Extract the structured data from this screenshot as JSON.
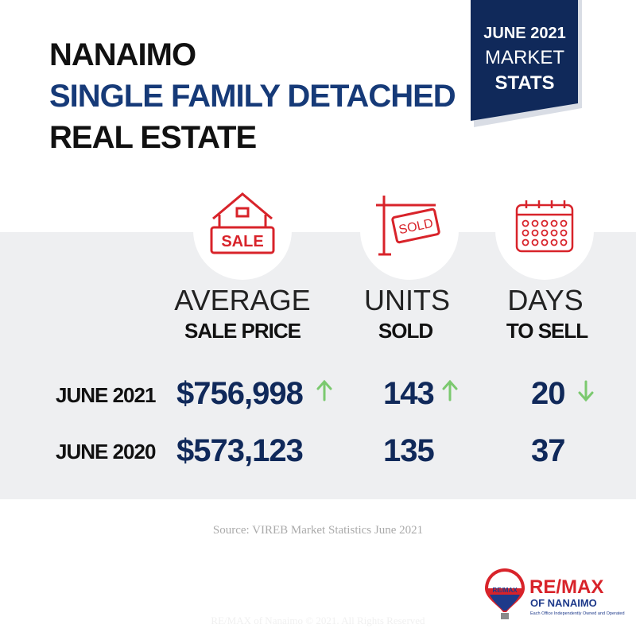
{
  "header": {
    "title_lines": [
      "NANAIMO",
      "SINGLE FAMILY DETACHED",
      "REAL ESTATE"
    ],
    "badge": [
      "JUNE 2021",
      "MARKET",
      "STATS"
    ]
  },
  "icons": {
    "sale_sign": "SALE",
    "sold_sign": "SOLD"
  },
  "table": {
    "columns": [
      [
        "AVERAGE",
        "SALE PRICE"
      ],
      [
        "UNITS",
        "SOLD"
      ],
      [
        "DAYS",
        "TO SELL"
      ]
    ],
    "rows": [
      [
        "JUNE 2021",
        "$756,998",
        "143",
        "20"
      ],
      [
        "JUNE 2020",
        "$573,123",
        "135",
        "37"
      ]
    ]
  },
  "source": "Source: VIREB Market Statistics June 2021",
  "logo": {
    "brand": "RE/MAX",
    "office": "OF NANAIMO",
    "tagline": "Each Office Independently Owned and Operated",
    "balloon": "RE/MAX"
  },
  "footer": "RE/MAX of Nanaimo © 2021. All Rights Reserved"
}
